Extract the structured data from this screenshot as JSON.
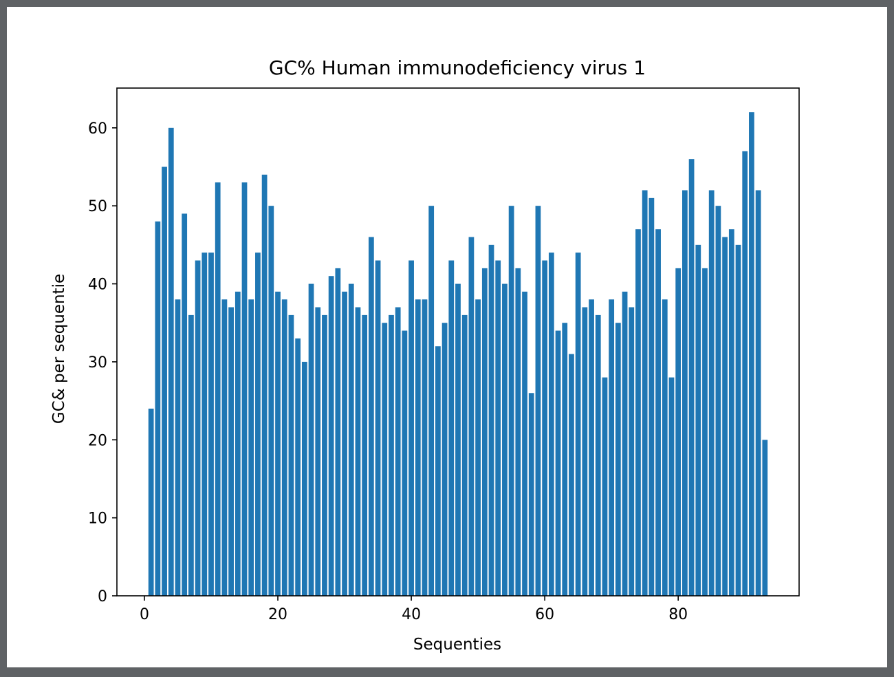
{
  "chart_data": {
    "type": "bar",
    "title": "GC% Human immunodeficiency virus 1",
    "xlabel": "Sequenties",
    "ylabel": "GC& per sequentie",
    "x": [
      1,
      2,
      3,
      4,
      5,
      6,
      7,
      8,
      9,
      10,
      11,
      12,
      13,
      14,
      15,
      16,
      17,
      18,
      19,
      20,
      21,
      22,
      23,
      24,
      25,
      26,
      27,
      28,
      29,
      30,
      31,
      32,
      33,
      34,
      35,
      36,
      37,
      38,
      39,
      40,
      41,
      42,
      43,
      44,
      45,
      46,
      47,
      48,
      49,
      50,
      51,
      52,
      53,
      54,
      55,
      56,
      57,
      58,
      59,
      60,
      61,
      62,
      63,
      64,
      65,
      66,
      67,
      68,
      69,
      70,
      71,
      72,
      73,
      74,
      75,
      76,
      77,
      78,
      79,
      80,
      81,
      82,
      83,
      84,
      85,
      86,
      87,
      88,
      89,
      90,
      91,
      92,
      93
    ],
    "values": [
      24,
      48,
      55,
      60,
      38,
      49,
      36,
      43,
      44,
      44,
      53,
      38,
      37,
      39,
      53,
      38,
      44,
      54,
      50,
      39,
      38,
      36,
      33,
      30,
      40,
      37,
      36,
      41,
      42,
      39,
      40,
      37,
      36,
      46,
      43,
      35,
      36,
      37,
      34,
      43,
      38,
      38,
      50,
      32,
      35,
      43,
      40,
      36,
      46,
      38,
      42,
      45,
      43,
      40,
      50,
      42,
      39,
      26,
      50,
      43,
      44,
      34,
      35,
      31,
      44,
      37,
      38,
      36,
      28,
      38,
      35,
      39,
      37,
      47,
      52,
      51,
      47,
      38,
      28,
      42,
      52,
      56,
      45,
      42,
      52,
      50,
      46,
      47,
      45,
      57,
      62,
      52,
      20
    ],
    "xticks": [
      0,
      20,
      40,
      60,
      80
    ],
    "yticks": [
      0,
      10,
      20,
      30,
      40,
      50,
      60
    ],
    "xlim": [
      -4.12,
      98.12
    ],
    "ylim": [
      0,
      65.1
    ],
    "color": "#1f77b4",
    "grid": false,
    "legend": "none"
  }
}
